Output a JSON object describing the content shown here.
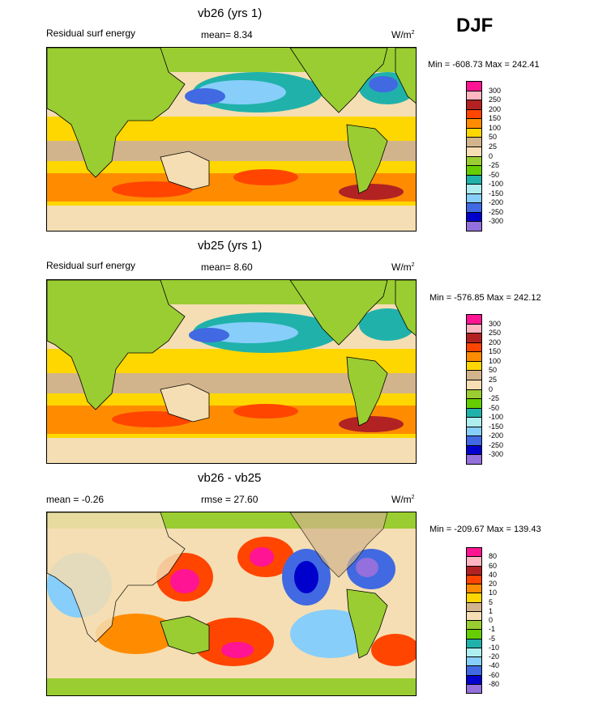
{
  "header": {
    "season_label": "DJF"
  },
  "panels": [
    {
      "id": "vb26",
      "title": "vb26 (yrs 1)",
      "left_label": "Residual surf energy",
      "center_label": "mean=  8.34",
      "units_base": "W/m",
      "units_exp": "2",
      "minmax": "Min = -608.73 Max = 242.41",
      "colorbar": {
        "levels": [
          "300",
          "250",
          "200",
          "150",
          "100",
          "50",
          "25",
          "0",
          "-25",
          "-50",
          "-100",
          "-150",
          "-200",
          "-250",
          "-300"
        ],
        "colors": [
          "#ff1493",
          "#ffb6c1",
          "#b22222",
          "#ff4500",
          "#ff8c00",
          "#ffd700",
          "#d2b48c",
          "#f5deb3",
          "#9acd32",
          "#66cd00",
          "#20b2aa",
          "#afeeee",
          "#87cefa",
          "#4169e1",
          "#0000cd",
          "#9370db"
        ]
      }
    },
    {
      "id": "vb25",
      "title": "vb25 (yrs 1)",
      "left_label": "Residual surf energy",
      "center_label": "mean=  8.60",
      "units_base": "W/m",
      "units_exp": "2",
      "minmax": "Min = -576.85 Max = 242.12",
      "colorbar": {
        "levels": [
          "300",
          "250",
          "200",
          "150",
          "100",
          "50",
          "25",
          "0",
          "-25",
          "-50",
          "-100",
          "-150",
          "-200",
          "-250",
          "-300"
        ],
        "colors": [
          "#ff1493",
          "#ffb6c1",
          "#b22222",
          "#ff4500",
          "#ff8c00",
          "#ffd700",
          "#d2b48c",
          "#f5deb3",
          "#9acd32",
          "#66cd00",
          "#20b2aa",
          "#afeeee",
          "#87cefa",
          "#4169e1",
          "#0000cd",
          "#9370db"
        ]
      }
    },
    {
      "id": "diff",
      "title": "vb26 - vb25",
      "left_label": "mean =  -0.26",
      "center_label": "rmse =  27.60",
      "units_base": "W/m",
      "units_exp": "2",
      "minmax": "Min = -209.67 Max = 139.43",
      "colorbar": {
        "levels": [
          "80",
          "60",
          "40",
          "20",
          "10",
          "5",
          "1",
          "0",
          "-1",
          "-5",
          "-10",
          "-20",
          "-40",
          "-60",
          "-80"
        ],
        "colors": [
          "#ff1493",
          "#ffb6c1",
          "#b22222",
          "#ff4500",
          "#ff8c00",
          "#ffd700",
          "#d2b48c",
          "#f5deb3",
          "#9acd32",
          "#66cd00",
          "#20b2aa",
          "#afeeee",
          "#87cefa",
          "#4169e1",
          "#0000cd",
          "#9370db"
        ]
      }
    }
  ],
  "chart_data": [
    {
      "type": "heatmap",
      "title": "vb26 (yrs 1)",
      "subtitle": "Residual surf energy",
      "mean": 8.34,
      "units": "W/m2",
      "min": -608.73,
      "max": 242.41,
      "contour_levels": [
        -300,
        -250,
        -200,
        -150,
        -100,
        -50,
        -25,
        0,
        25,
        50,
        100,
        150,
        200,
        250,
        300
      ],
      "projection": "global cylindrical, Pacific-centered",
      "color_scale": [
        "#9370db",
        "#0000cd",
        "#4169e1",
        "#87cefa",
        "#afeeee",
        "#20b2aa",
        "#66cd00",
        "#9acd32",
        "#f5deb3",
        "#d2b48c",
        "#ffd700",
        "#ff8c00",
        "#ff4500",
        "#b22222",
        "#ffb6c1",
        "#ff1493"
      ]
    },
    {
      "type": "heatmap",
      "title": "vb25 (yrs 1)",
      "subtitle": "Residual surf energy",
      "mean": 8.6,
      "units": "W/m2",
      "min": -576.85,
      "max": 242.12,
      "contour_levels": [
        -300,
        -250,
        -200,
        -150,
        -100,
        -50,
        -25,
        0,
        25,
        50,
        100,
        150,
        200,
        250,
        300
      ],
      "projection": "global cylindrical, Pacific-centered",
      "color_scale": [
        "#9370db",
        "#0000cd",
        "#4169e1",
        "#87cefa",
        "#afeeee",
        "#20b2aa",
        "#66cd00",
        "#9acd32",
        "#f5deb3",
        "#d2b48c",
        "#ffd700",
        "#ff8c00",
        "#ff4500",
        "#b22222",
        "#ffb6c1",
        "#ff1493"
      ]
    },
    {
      "type": "heatmap",
      "title": "vb26 - vb25",
      "mean": -0.26,
      "rmse": 27.6,
      "units": "W/m2",
      "min": -209.67,
      "max": 139.43,
      "contour_levels": [
        -80,
        -60,
        -40,
        -20,
        -10,
        -5,
        -1,
        0,
        1,
        5,
        10,
        20,
        40,
        60,
        80
      ],
      "projection": "global cylindrical, Pacific-centered",
      "color_scale": [
        "#9370db",
        "#0000cd",
        "#4169e1",
        "#87cefa",
        "#afeeee",
        "#20b2aa",
        "#66cd00",
        "#9acd32",
        "#f5deb3",
        "#d2b48c",
        "#ffd700",
        "#ff8c00",
        "#ff4500",
        "#b22222",
        "#ffb6c1",
        "#ff1493"
      ]
    }
  ]
}
